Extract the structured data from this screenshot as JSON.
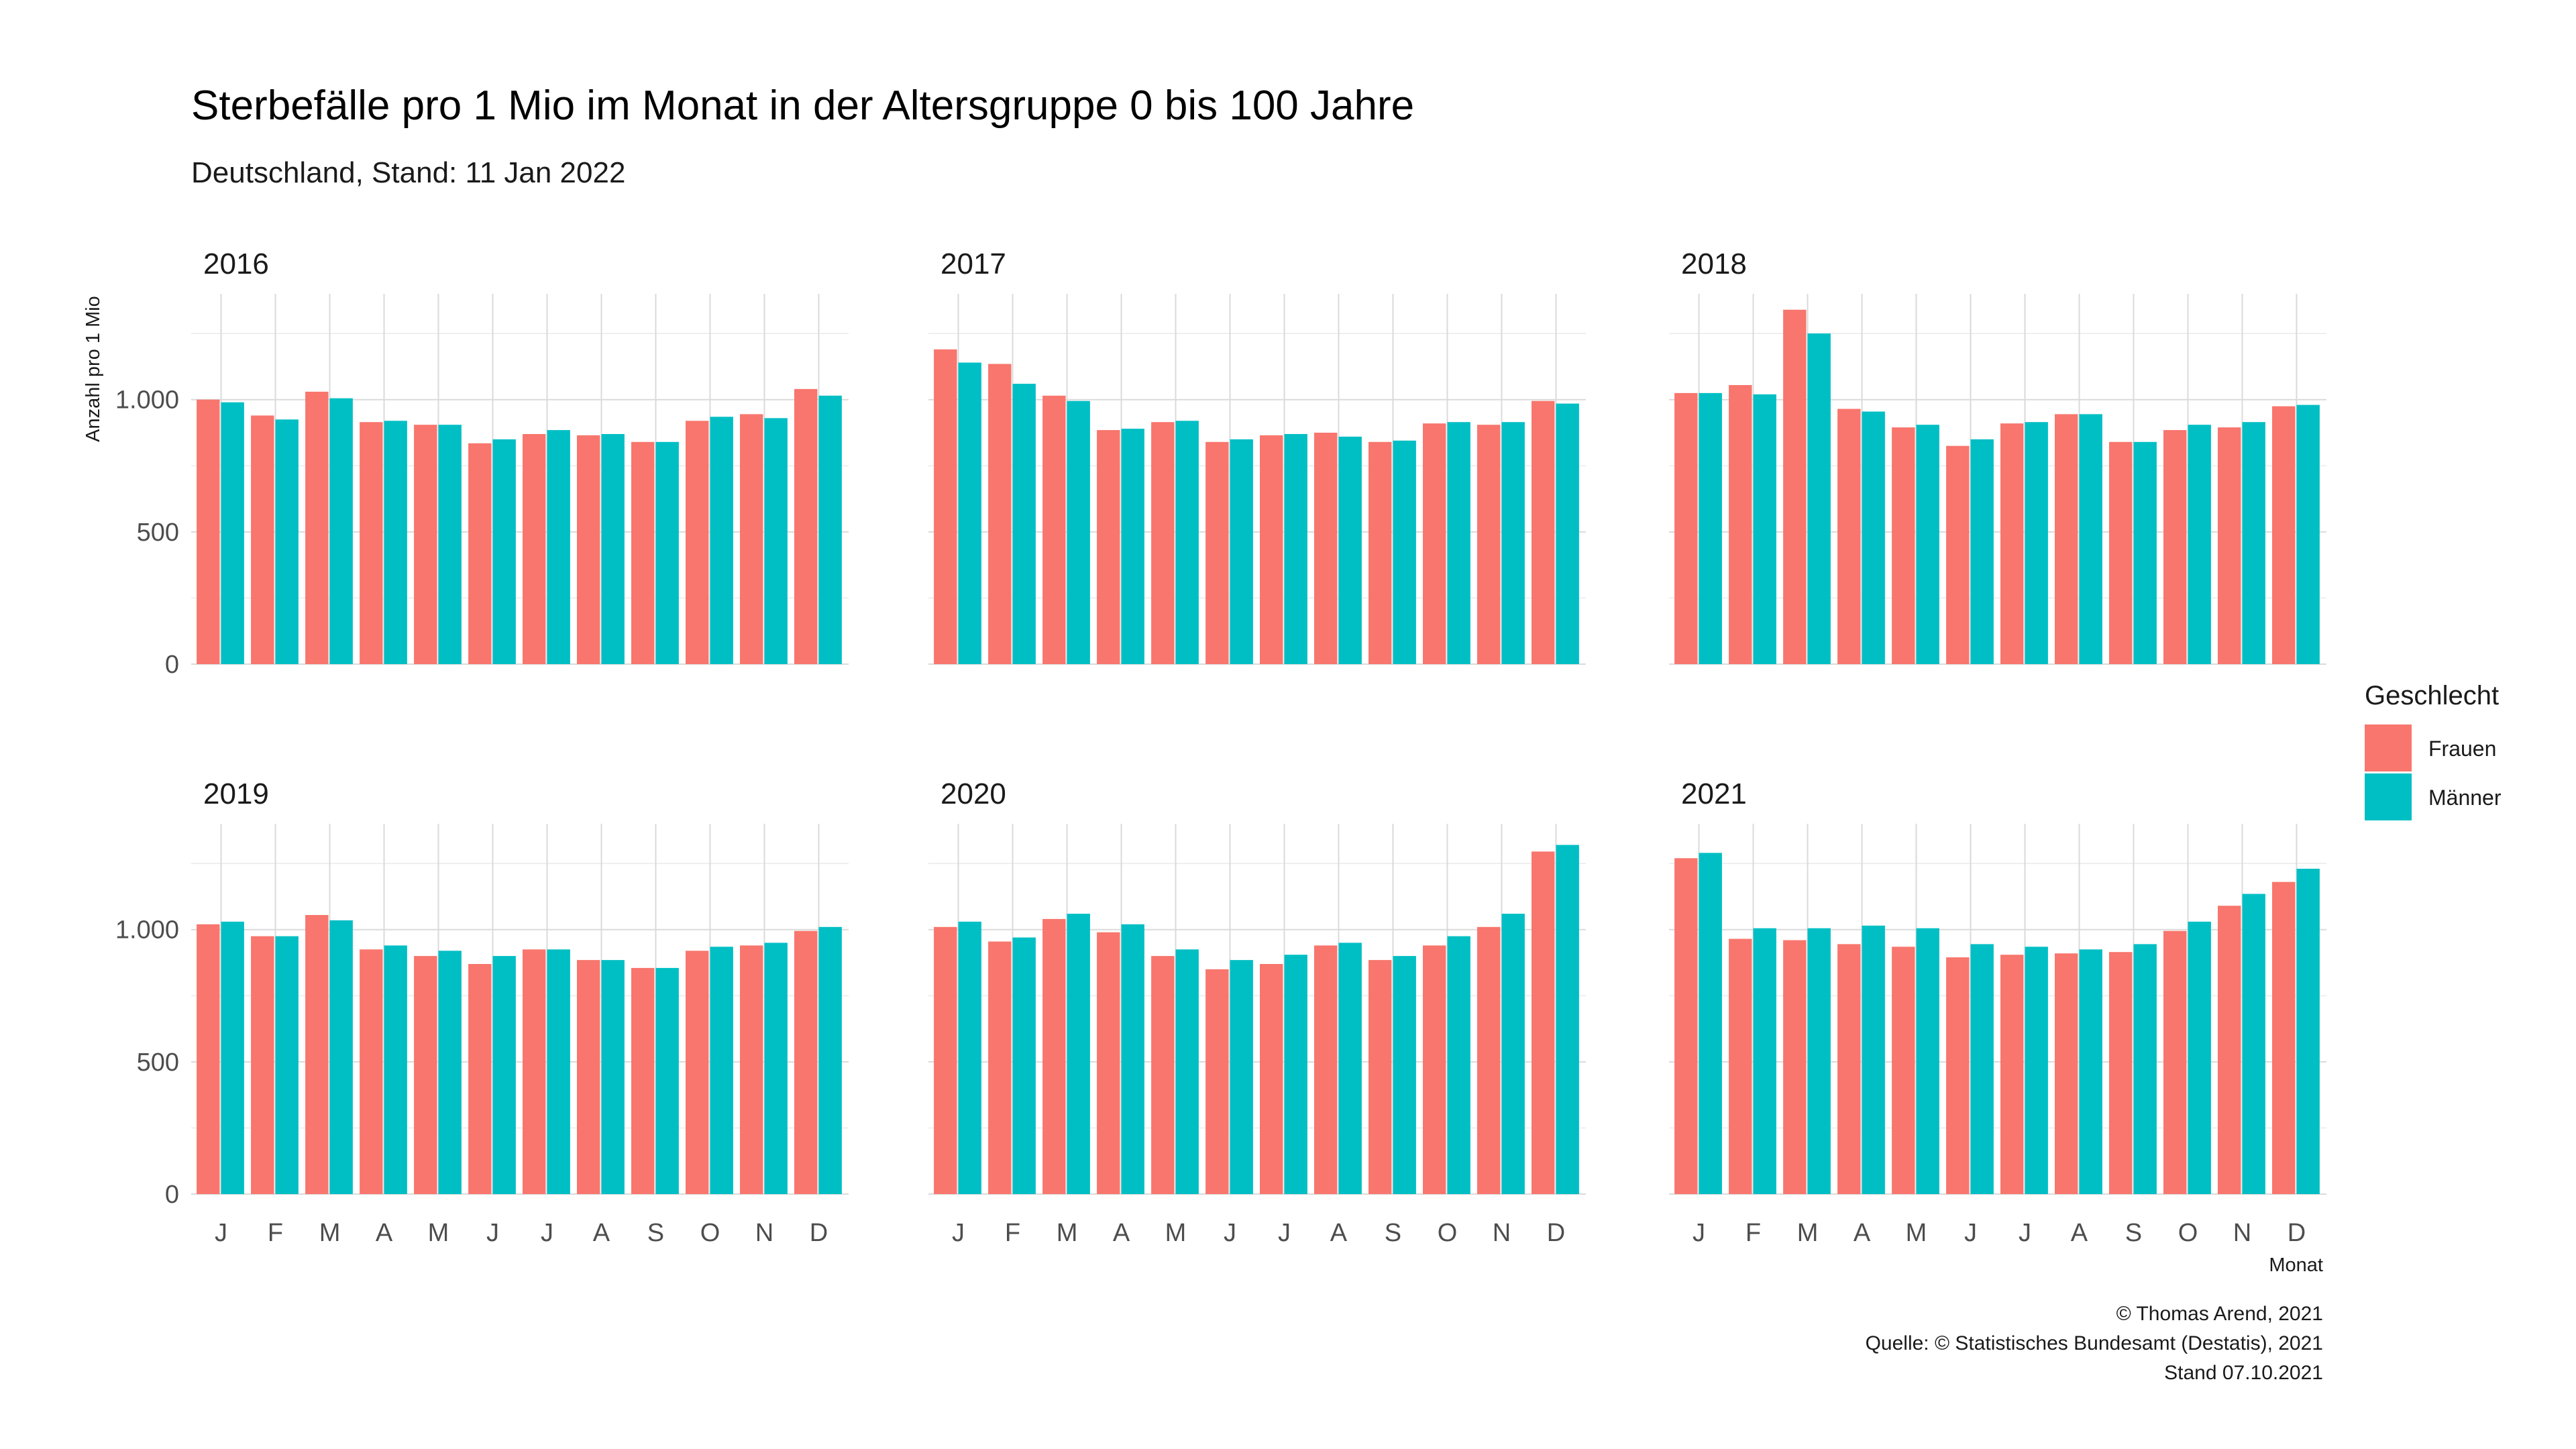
{
  "header": {
    "title": "Sterbefälle pro 1 Mio im Monat in der Altersgruppe 0 bis 100 Jahre",
    "subtitle": "Deutschland, Stand: 11 Jan 2022"
  },
  "caption": {
    "line1": "© Thomas Arend, 2021",
    "line2": "Quelle: © Statistisches Bundesamt (Destatis), 2021",
    "line3": "Stand 07.10.2021"
  },
  "legend": {
    "title": "Geschlecht",
    "items": [
      {
        "label": "Frauen",
        "color": "#F8766D"
      },
      {
        "label": "Männer",
        "color": "#00BFC4"
      }
    ]
  },
  "chart_data": {
    "type": "bar",
    "xlabel": "Monat",
    "ylabel": "Anzahl pro 1 Mio",
    "ylim": [
      0,
      1400
    ],
    "y_ticks": [
      0,
      500,
      1000
    ],
    "y_tick_labels": [
      "0",
      "500",
      "1.000"
    ],
    "categories": [
      "J",
      "F",
      "M",
      "A",
      "M",
      "J",
      "J",
      "A",
      "S",
      "O",
      "N",
      "D"
    ],
    "series_names": [
      "Frauen",
      "Männer"
    ],
    "grid": true,
    "legend_position": "right",
    "panels": [
      {
        "year": "2016",
        "series": [
          {
            "name": "Frauen",
            "values": [
              1000,
              940,
              1030,
              915,
              905,
              835,
              870,
              865,
              840,
              920,
              945,
              1040
            ]
          },
          {
            "name": "Männer",
            "values": [
              990,
              925,
              1005,
              920,
              905,
              850,
              885,
              870,
              840,
              935,
              930,
              1015
            ]
          }
        ]
      },
      {
        "year": "2017",
        "series": [
          {
            "name": "Frauen",
            "values": [
              1190,
              1135,
              1015,
              885,
              915,
              840,
              865,
              875,
              840,
              910,
              905,
              995
            ]
          },
          {
            "name": "Männer",
            "values": [
              1140,
              1060,
              995,
              890,
              920,
              850,
              870,
              860,
              845,
              915,
              915,
              985
            ]
          }
        ]
      },
      {
        "year": "2018",
        "series": [
          {
            "name": "Frauen",
            "values": [
              1025,
              1055,
              1340,
              965,
              895,
              825,
              910,
              945,
              840,
              885,
              895,
              975
            ]
          },
          {
            "name": "Männer",
            "values": [
              1025,
              1020,
              1250,
              955,
              905,
              850,
              915,
              945,
              840,
              905,
              915,
              980
            ]
          }
        ]
      },
      {
        "year": "2019",
        "series": [
          {
            "name": "Frauen",
            "values": [
              1020,
              975,
              1055,
              925,
              900,
              870,
              925,
              885,
              855,
              920,
              940,
              995
            ]
          },
          {
            "name": "Männer",
            "values": [
              1030,
              975,
              1035,
              940,
              920,
              900,
              925,
              885,
              855,
              935,
              950,
              1010
            ]
          }
        ]
      },
      {
        "year": "2020",
        "series": [
          {
            "name": "Frauen",
            "values": [
              1010,
              955,
              1040,
              990,
              900,
              850,
              870,
              940,
              885,
              940,
              1010,
              1295
            ]
          },
          {
            "name": "Männer",
            "values": [
              1030,
              970,
              1060,
              1020,
              925,
              885,
              905,
              950,
              900,
              975,
              1060,
              1320
            ]
          }
        ]
      },
      {
        "year": "2021",
        "series": [
          {
            "name": "Frauen",
            "values": [
              1270,
              965,
              960,
              945,
              935,
              895,
              905,
              910,
              915,
              995,
              1090,
              1180
            ]
          },
          {
            "name": "Männer",
            "values": [
              1290,
              1005,
              1005,
              1015,
              1005,
              945,
              935,
              925,
              945,
              1030,
              1135,
              1230
            ]
          }
        ]
      }
    ]
  }
}
